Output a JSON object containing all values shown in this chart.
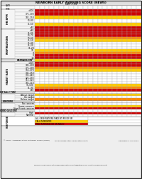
{
  "n_cols": 22,
  "sections": [
    {
      "label": "HR BPM",
      "rows": [
        {
          "label": ">200",
          "color": "#cc0000"
        },
        {
          "label": "171-190",
          "color": "#cc0000"
        },
        {
          "label": "101-150",
          "color": "#ffcc00"
        },
        {
          "label": "61-80",
          "color": "#ffffff"
        },
        {
          "label": "41-60",
          "color": "#ffcc00"
        },
        {
          "label": "<40",
          "color": "#cc0000"
        }
      ]
    },
    {
      "label": "RESPIRATIONS",
      "rows": [
        {
          "label": ">80",
          "color": "#cc0000"
        },
        {
          "label": "71-80",
          "color": "#cc0000"
        },
        {
          "label": "61-70",
          "color": "#cc0000"
        },
        {
          "label": "51-60",
          "color": "#ff8800"
        },
        {
          "label": "41-50",
          "color": "#ffcc00"
        },
        {
          "label": "31-40",
          "color": "#ffffff"
        },
        {
          "label": "21-30",
          "color": "#ffffff"
        },
        {
          "label": "11-20",
          "color": "#ffffff"
        },
        {
          "label": "10",
          "color": "#ffcc00"
        },
        {
          "label": "9",
          "color": "#ff8800"
        },
        {
          "label": "8",
          "color": "#cc0000"
        },
        {
          "label": "<8",
          "color": "#cc0000"
        }
      ]
    },
    {
      "label": "HEART RATE",
      "rows": [
        {
          "label": ">200",
          "color": "#cc0000"
        },
        {
          "label": "191-200",
          "color": "#cc0000"
        },
        {
          "label": "171-190",
          "color": "#ff8800"
        },
        {
          "label": "151-170",
          "color": "#ffcc00"
        },
        {
          "label": "141-150",
          "color": "#ffffff"
        },
        {
          "label": "131-140",
          "color": "#ffffff"
        },
        {
          "label": "121-130",
          "color": "#ffffff"
        },
        {
          "label": "111-120",
          "color": "#ffffff"
        },
        {
          "label": "101-110",
          "color": "#ffffff"
        },
        {
          "label": "91-100",
          "color": "#ffcc00"
        },
        {
          "label": "81-90",
          "color": "#ff8800"
        },
        {
          "label": "<80",
          "color": "#cc0000"
        }
      ]
    }
  ],
  "grimace_row": {
    "label": "GRIMACE/CRY",
    "color": "#ffcc00"
  },
  "bottom_sections": [
    {
      "section_label": "O2 Sats /\nFiO2",
      "rows": [
        {
          "label": "Above target",
          "color": "#ffcc00"
        },
        {
          "label": "On target",
          "color": "#ffffff"
        },
        {
          "label": "Below target",
          "color": "#ff8800"
        }
      ]
    },
    {
      "section_label": "CONCERN",
      "rows": [
        {
          "label": "No concern",
          "color": "#ffffff"
        },
        {
          "label": "Some concern",
          "color": "#ffcc00"
        },
        {
          "label": "Significant concern",
          "color": "#cc0000"
        }
      ]
    },
    {
      "section_label": "BLOOD\nGLUCOSE",
      "rows": [
        {
          "label": "High",
          "color": "#cc0000"
        },
        {
          "label": "Normal",
          "color": "#ffffff"
        }
      ]
    }
  ],
  "response_section": {
    "label": "RESPONSE",
    "rows": [
      {
        "label": "ALL OBSERVATIONS MADE BY RN OR RM",
        "color": "#ffffff"
      },
      {
        "label": "CALL IN MIDWIFE",
        "color": "#ffcc00"
      },
      {
        "label": "FIND IN PERSON OR ON PASCO",
        "color": "#cc0000"
      }
    ]
  },
  "footer_left": "© PRINT - NEWBORN EARLY WARNING SCORE (NEWS)",
  "footer_mid": "File alongside other observation charts",
  "footer_right": "REFERENCE - Nov 2019",
  "figure_note": "FIGURE 2 Final version of the NWS Observation Chart separating all six lines to aid regular clarity",
  "colors": {
    "red": "#cc0000",
    "orange": "#ff8800",
    "yellow": "#ffcc00",
    "white": "#ffffff",
    "grid": "#aaaaaa",
    "border": "#555555",
    "hdr_bg": "#e0e0e0",
    "lbl_bg": "#f5f5f5"
  }
}
